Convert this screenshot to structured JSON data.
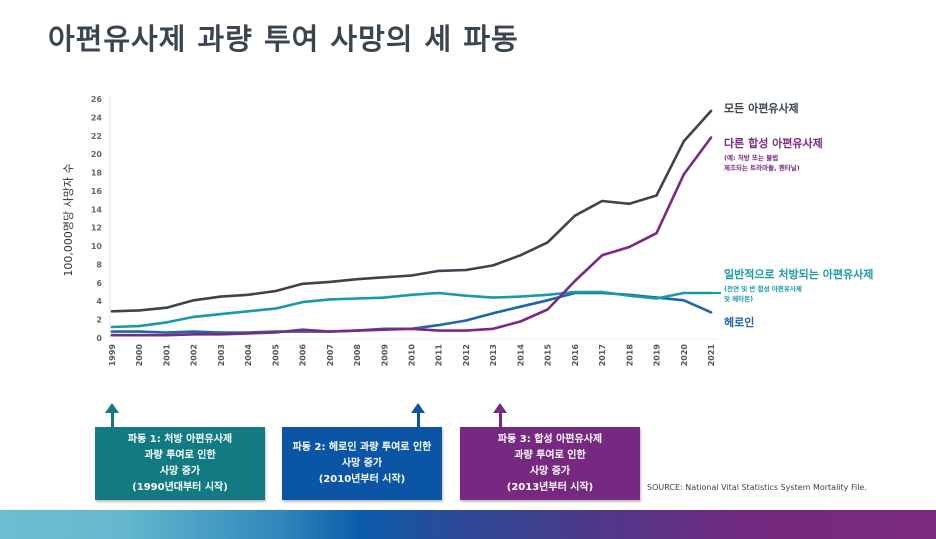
{
  "title": "아편유사제 과량 투여 사망의 세 파동",
  "chart_data": {
    "type": "line",
    "title": "아편유사제 과량 투여 사망의 세 파동",
    "xlabel": "",
    "ylabel": "100,000명당 사망자 수",
    "ylim": [
      0,
      26
    ],
    "yticks": [
      0,
      2,
      4,
      6,
      8,
      10,
      12,
      14,
      16,
      18,
      20,
      22,
      24,
      26
    ],
    "x": [
      "1999",
      "2000",
      "2001",
      "2002",
      "2003",
      "2004",
      "2005",
      "2006",
      "2007",
      "2008",
      "2009",
      "2010",
      "2011",
      "2012",
      "2013",
      "2014",
      "2015",
      "2016",
      "2017",
      "2018",
      "2019",
      "2020",
      "2021"
    ],
    "grid": false,
    "legend_placement": "right (end-of-line labels)",
    "series": [
      {
        "name": "모든 아편유사제",
        "sub": "",
        "color": "#3a4550",
        "values": [
          2.9,
          3.0,
          3.3,
          4.1,
          4.5,
          4.7,
          5.1,
          5.9,
          6.1,
          6.4,
          6.6,
          6.8,
          7.3,
          7.4,
          7.9,
          9.0,
          10.4,
          13.3,
          14.9,
          14.6,
          15.5,
          21.4,
          24.7
        ]
      },
      {
        "name": "다른 합성 아편유사제",
        "sub": [
          "(예: 처방 또는 불법",
          "제조되는 트라마돌, 펜타닐)"
        ],
        "color": "#7b2a82",
        "values": [
          0.3,
          0.3,
          0.3,
          0.4,
          0.4,
          0.5,
          0.6,
          0.9,
          0.7,
          0.8,
          0.9,
          1.0,
          0.8,
          0.8,
          1.0,
          1.8,
          3.1,
          6.2,
          9.0,
          9.9,
          11.4,
          17.8,
          21.8
        ]
      },
      {
        "name": "일반적으로 처방되는 아편유사제",
        "sub": [
          "(천연 및 반 합성 아편유사제",
          "및 메타돈)"
        ],
        "color": "#1a9aa6",
        "values": [
          1.2,
          1.3,
          1.7,
          2.3,
          2.6,
          2.9,
          3.2,
          3.9,
          4.2,
          4.3,
          4.4,
          4.7,
          4.9,
          4.6,
          4.4,
          4.5,
          4.7,
          5.0,
          5.0,
          4.6,
          4.3,
          4.9,
          4.9
        ]
      },
      {
        "name": "헤로인",
        "sub": "",
        "color": "#1f66b0",
        "values": [
          0.7,
          0.7,
          0.6,
          0.7,
          0.6,
          0.6,
          0.7,
          0.7,
          0.7,
          0.8,
          1.0,
          1.0,
          1.4,
          1.9,
          2.7,
          3.4,
          4.1,
          4.9,
          4.9,
          4.7,
          4.4,
          4.1,
          2.8
        ]
      }
    ],
    "annotations": [
      {
        "lines": [
          "파동 1: 처방 아편유사제",
          "과량 투여로 인한",
          "사망 증가",
          "(1990년대부터 시작)"
        ],
        "color": "#127a82",
        "arrow_year": "1999"
      },
      {
        "lines": [
          "파동 2: 헤로인 과량 투여로 인한",
          "사망 증가",
          "(2010년부터 시작)"
        ],
        "color": "#0b55a6",
        "arrow_year": "2010"
      },
      {
        "lines": [
          "파동 3: 합성 아편유사제",
          "과량 투여로 인한",
          "사망 증가",
          "(2013년부터 시작)"
        ],
        "color": "#772981",
        "arrow_year": "2013"
      }
    ],
    "source": "SOURCE: National Vital Statistics System Mortality File."
  }
}
